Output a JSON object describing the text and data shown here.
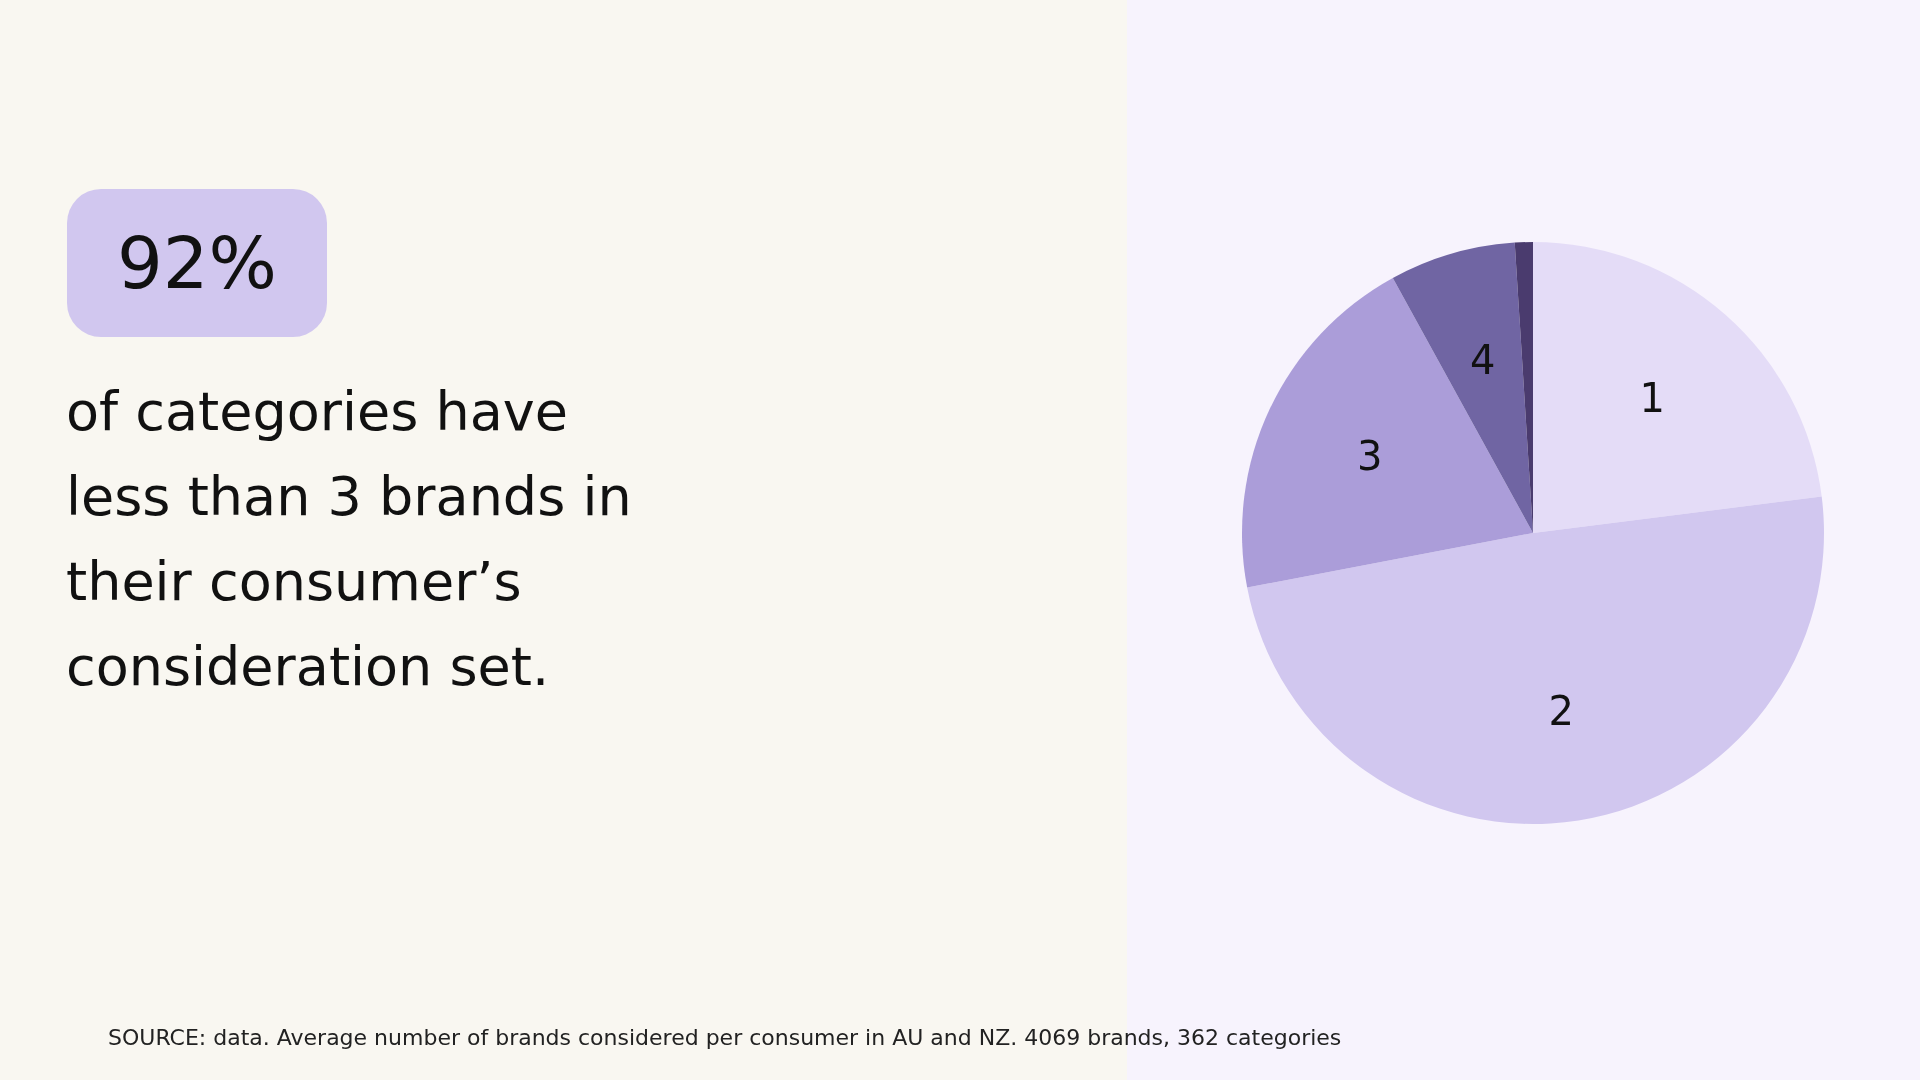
{
  "chart_data": {
    "type": "pie",
    "title": "92%",
    "subtitle": "of categories have less than 3 brands in their consumer’s consideration set.",
    "categories": [
      "1",
      "2",
      "3",
      "4",
      null
    ],
    "values": [
      23,
      49,
      20,
      7,
      1
    ],
    "colors": [
      "#e4dcf7",
      "#d1c7ef",
      "#ab9dd9",
      "#7065a3",
      "#4a3b6e"
    ],
    "annotations": [
      "SOURCE: data. Average number of brands considered per consumer in AU and NZ. 4069 brands, 362 categories"
    ]
  }
}
